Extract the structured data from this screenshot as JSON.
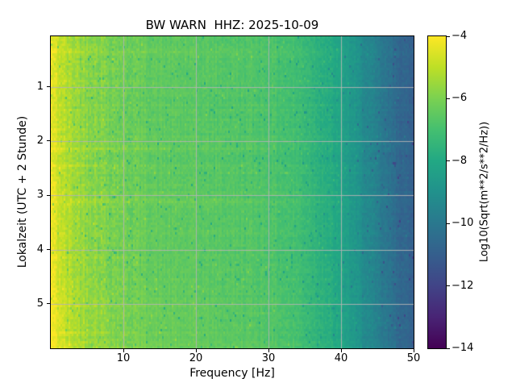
{
  "chart_data": {
    "type": "heatmap",
    "subtype": "spectrogram",
    "title": "BW WARN  HHZ: 2025-10-09",
    "xlabel": "Frequency [Hz]",
    "ylabel": "Lokalzeit (UTC + 2 Stunde)",
    "colorbar_label": "Log10(Sqrt(m**2/s**2/Hz))",
    "freq_range_hz": [
      0,
      50
    ],
    "x_ticks_hz": [
      10,
      20,
      30,
      40,
      50
    ],
    "time_range_hours": [
      0.07,
      5.82
    ],
    "y_ticks_hours": [
      1,
      2,
      3,
      4,
      5
    ],
    "value_range_log10": [
      -14,
      -4
    ],
    "colorbar_ticks": [
      -4,
      -6,
      -8,
      -10,
      -12,
      -14
    ],
    "grid_on": true,
    "grid_color": "#b4b4b4",
    "axis_color": "#000000",
    "background_color": "#ffffff",
    "colormap": {
      "name": "viridis",
      "stops": [
        "#440154",
        "#482475",
        "#414487",
        "#355f8d",
        "#2a788e",
        "#21918c",
        "#22a884",
        "#44bf70",
        "#7ad151",
        "#bddf26",
        "#fde725"
      ]
    },
    "spectral_profile": {
      "freq_hz": [
        0,
        0.5,
        1,
        2,
        3,
        5,
        8,
        10,
        15,
        20,
        25,
        30,
        34,
        37,
        40,
        43,
        46,
        48,
        50
      ],
      "log10_amp": [
        -4.3,
        -4.5,
        -4.8,
        -5.2,
        -5.4,
        -5.7,
        -6.0,
        -6.2,
        -6.5,
        -6.6,
        -6.7,
        -6.8,
        -7.1,
        -7.6,
        -8.2,
        -9.2,
        -10.1,
        -10.6,
        -11.0
      ]
    },
    "time_trend": {
      "hours": [
        0.07,
        0.6,
        1.5,
        2.6,
        3.0,
        3.3,
        4.2,
        4.8,
        5.3,
        5.82
      ],
      "offset": [
        0.12,
        0.02,
        0.0,
        0.02,
        0.1,
        0.05,
        0.05,
        0.18,
        0.3,
        0.35
      ]
    },
    "events": [
      {
        "hour": 0.35,
        "strength": 0.35,
        "freq_decay_hz": 20
      },
      {
        "hour": 0.9,
        "strength": 0.4,
        "freq_decay_hz": 16
      },
      {
        "hour": 2.15,
        "strength": 0.5,
        "freq_decay_hz": 18
      },
      {
        "hour": 2.45,
        "strength": 0.35,
        "freq_decay_hz": 14
      },
      {
        "hour": 3.1,
        "strength": 0.45,
        "freq_decay_hz": 40
      },
      {
        "hour": 4.15,
        "strength": 0.35,
        "freq_decay_hz": 16
      },
      {
        "hour": 5.05,
        "strength": 0.4,
        "freq_decay_hz": 25
      },
      {
        "hour": 5.55,
        "strength": 0.5,
        "freq_decay_hz": 30
      }
    ],
    "noise": {
      "seed": 42,
      "cell": 0.22,
      "row": 0.1,
      "bin": 0.14,
      "low_freq_extra": 0.12,
      "low_freq_cutoff_hz": 12,
      "dark_speck_prob": 0.02,
      "bright_speck_prob": 0.012
    }
  }
}
